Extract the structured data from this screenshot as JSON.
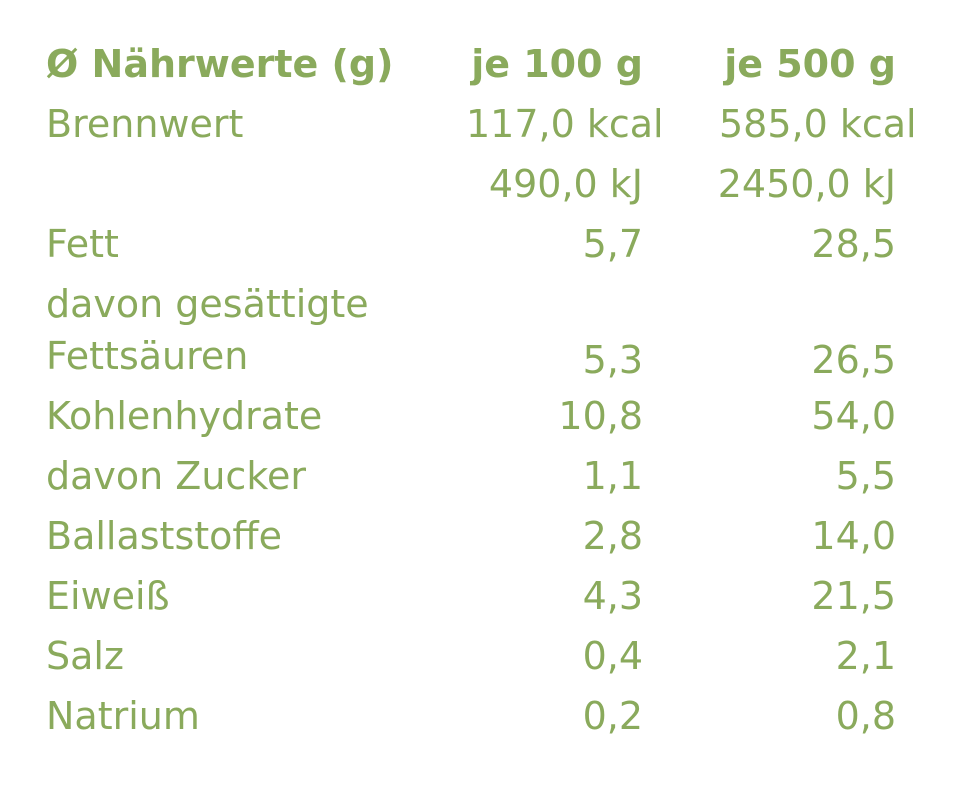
{
  "header": {
    "label": "Ø Nährwerte (g)",
    "col1": "je 100 g",
    "col2": "je 500 g"
  },
  "rows": [
    {
      "label": "Brennwert",
      "per100": "117,0 kcal",
      "per500": "585,0 kcal"
    },
    {
      "label": "",
      "per100": "490,0 kJ",
      "per500": "2450,0 kJ"
    },
    {
      "label": "Fett",
      "per100": "5,7",
      "per500": "28,5"
    },
    {
      "label": "davon gesättigte Fettsäuren",
      "per100": "5,3",
      "per500": "26,5"
    },
    {
      "label": "Kohlenhydrate",
      "per100": "10,8",
      "per500": "54,0"
    },
    {
      "label": "davon Zucker",
      "per100": "1,1",
      "per500": "5,5"
    },
    {
      "label": "Ballaststoffe",
      "per100": "2,8",
      "per500": "14,0"
    },
    {
      "label": "Eiweiß",
      "per100": "4,3",
      "per500": "21,5"
    },
    {
      "label": "Salz",
      "per100": "0,4",
      "per500": "2,1"
    },
    {
      "label": "Natrium",
      "per100": "0,2",
      "per500": "0,8"
    }
  ]
}
